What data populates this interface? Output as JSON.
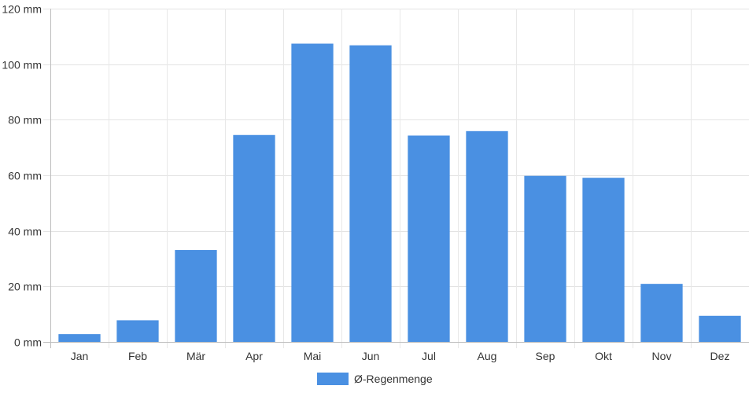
{
  "chart_data": {
    "type": "bar",
    "categories": [
      "Jan",
      "Feb",
      "Mär",
      "Apr",
      "Mai",
      "Jun",
      "Jul",
      "Aug",
      "Sep",
      "Okt",
      "Nov",
      "Dez"
    ],
    "series": [
      {
        "name": "Ø-Regenmenge",
        "color": "#4a90e2",
        "values": [
          2.8,
          7.8,
          33.1,
          74.5,
          107.4,
          106.8,
          74.3,
          75.9,
          59.8,
          59.1,
          20.9,
          9.4
        ]
      }
    ],
    "ylim": [
      0,
      120
    ],
    "yticks": [
      0,
      20,
      40,
      60,
      80,
      100,
      120
    ],
    "y_unit": "mm",
    "grid": true,
    "legend_position": "bottom-center"
  }
}
